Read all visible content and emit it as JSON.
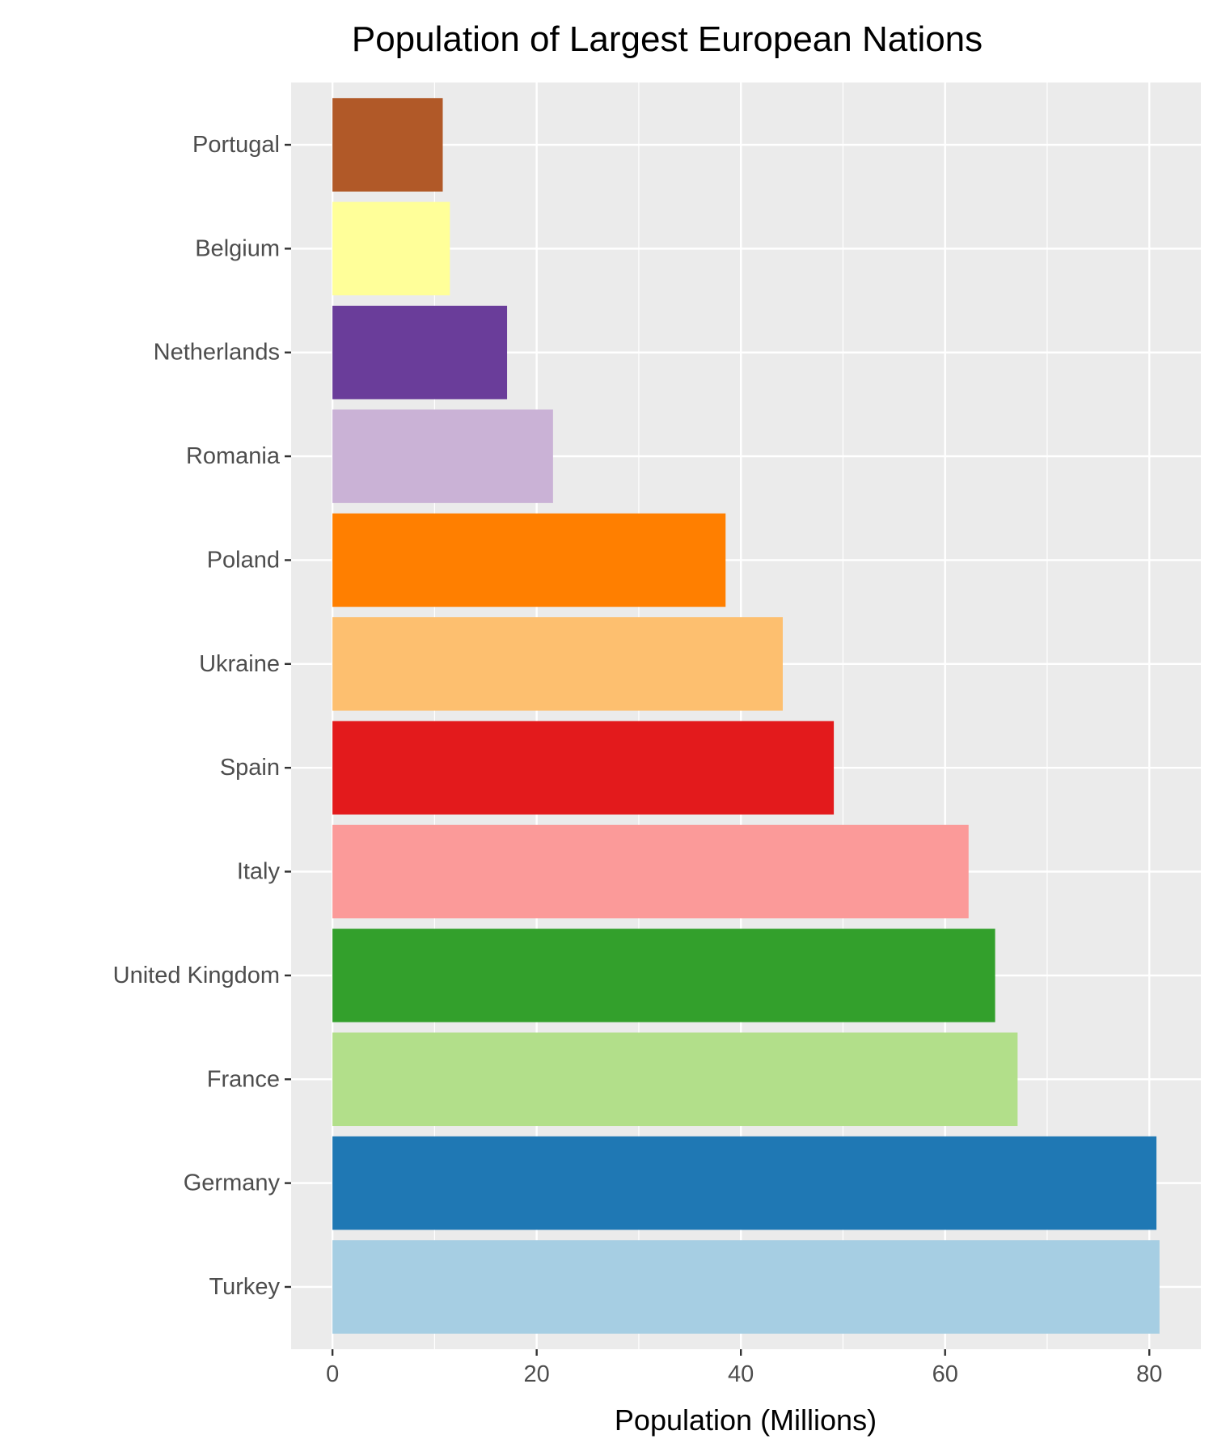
{
  "chart_data": {
    "type": "bar",
    "orientation": "horizontal",
    "title": "Population of Largest European Nations",
    "xlabel": "Population (Millions)",
    "ylabel": "",
    "xlim": [
      -4.05,
      85.05
    ],
    "x_ticks": [
      0,
      20,
      40,
      60,
      80
    ],
    "grid": true,
    "legend": "none",
    "categories": [
      "Turkey",
      "Germany",
      "France",
      "United Kingdom",
      "Italy",
      "Spain",
      "Ukraine",
      "Poland",
      "Romania",
      "Netherlands",
      "Belgium",
      "Portugal"
    ],
    "values": [
      81.0,
      80.7,
      67.1,
      64.9,
      62.3,
      49.1,
      44.1,
      38.5,
      21.6,
      17.1,
      11.5,
      10.8
    ],
    "colors": [
      "#A6CEE3",
      "#1F78B4",
      "#B2DF8A",
      "#33A02C",
      "#FB9A99",
      "#E31A1C",
      "#FDBF6F",
      "#FF7F00",
      "#CAB2D6",
      "#6A3D9A",
      "#FFFF99",
      "#B15928"
    ]
  }
}
